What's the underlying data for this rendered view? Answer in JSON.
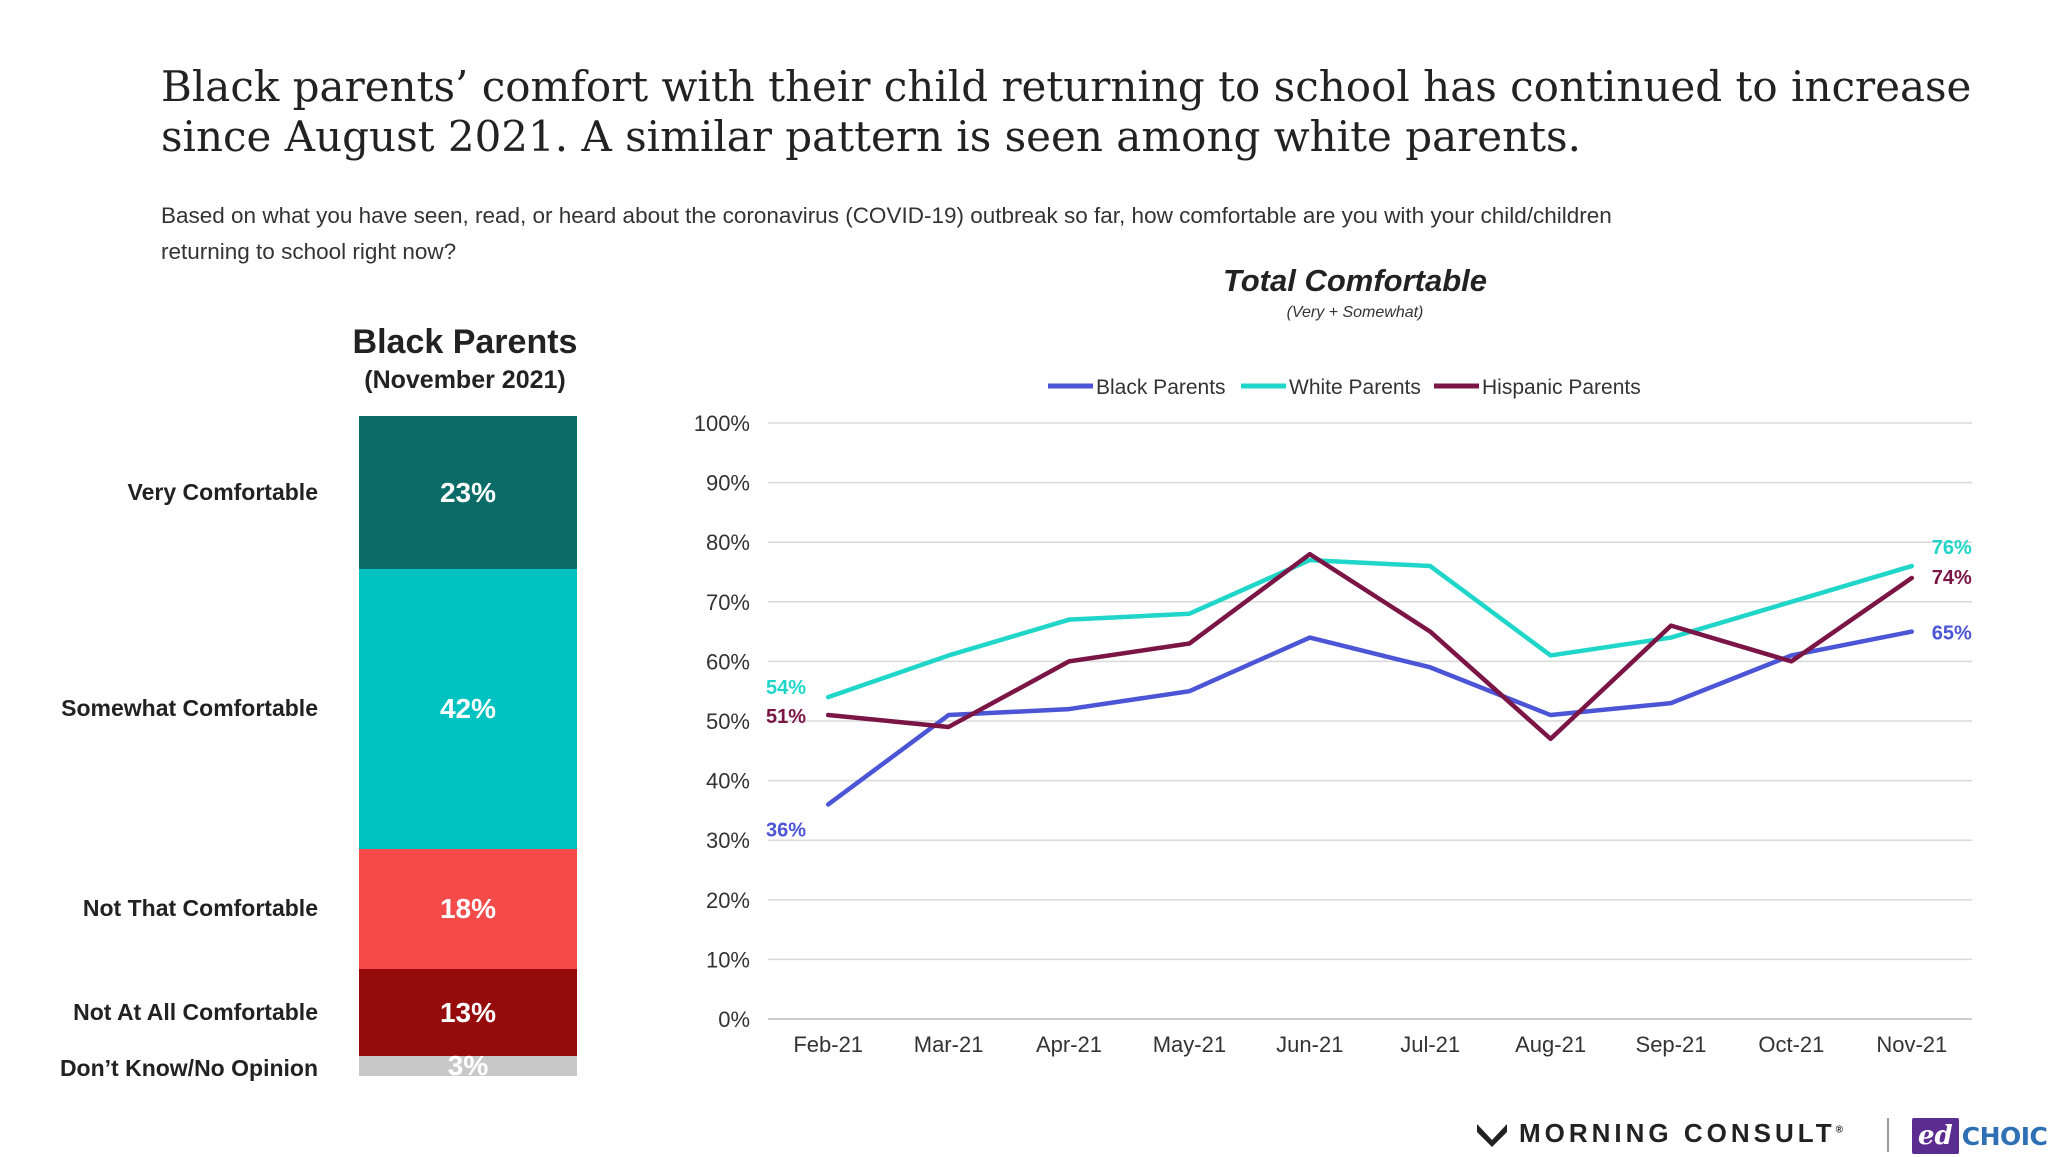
{
  "title": {
    "line1": "Black parents’ comfort with their child returning to school has continued to increase",
    "line2": "since August 2021. A similar pattern is seen among white parents."
  },
  "question": {
    "line1": "Based on what you have seen, read, or heard about the coronavirus (COVID-19) outbreak so far, how comfortable are you with your child/children",
    "line2": "returning to school right now?"
  },
  "chart_data": [
    {
      "type": "bar",
      "stacked": true,
      "title": "Black Parents",
      "subtitle": "(November 2021)",
      "segments": [
        {
          "label": "Very Comfortable",
          "value": 23,
          "value_label": "23%",
          "color": "#0b6b67"
        },
        {
          "label": "Somewhat Comfortable",
          "value": 42,
          "value_label": "42%",
          "color": "#00c2c1"
        },
        {
          "label": "Not That Comfortable",
          "value": 18,
          "value_label": "18%",
          "color": "#f44a4a"
        },
        {
          "label": "Not At All Comfortable",
          "value": 13,
          "value_label": "13%",
          "color": "#960c0c"
        },
        {
          "label": "Don’t Know/No Opinion",
          "value": 3,
          "value_label": "3%",
          "color": "#c8c8c8"
        }
      ]
    },
    {
      "type": "line",
      "title": "Total Comfortable",
      "subtitle": "(Very + Somewhat)",
      "categories": [
        "Feb-21",
        "Mar-21",
        "Apr-21",
        "May-21",
        "Jun-21",
        "Jul-21",
        "Aug-21",
        "Sep-21",
        "Oct-21",
        "Nov-21"
      ],
      "ylim": [
        0,
        100
      ],
      "yticks": [
        "0%",
        "10%",
        "20%",
        "30%",
        "40%",
        "50%",
        "60%",
        "70%",
        "80%",
        "90%",
        "100%"
      ],
      "grid": true,
      "legend": "top",
      "series": [
        {
          "name": "Black Parents",
          "color": "#4b55d6",
          "values": [
            36,
            51,
            52,
            55,
            64,
            59,
            51,
            53,
            61,
            65
          ],
          "start_label": "36%",
          "end_label": "65%"
        },
        {
          "name": "White Parents",
          "color": "#1fd6c8",
          "values": [
            54,
            61,
            67,
            68,
            77,
            76,
            61,
            64,
            70,
            76
          ],
          "start_label": "54%",
          "end_label": "76%"
        },
        {
          "name": "Hispanic Parents",
          "color": "#7a1546",
          "values": [
            51,
            49,
            60,
            63,
            78,
            65,
            47,
            66,
            60,
            74
          ],
          "start_label": "51%",
          "end_label": "74%"
        }
      ]
    }
  ],
  "footer": {
    "brand1": "MORNING CONSULT",
    "brand1_mark": "®",
    "brand2_ed": "ed",
    "brand2_choice": "CHOICE"
  }
}
